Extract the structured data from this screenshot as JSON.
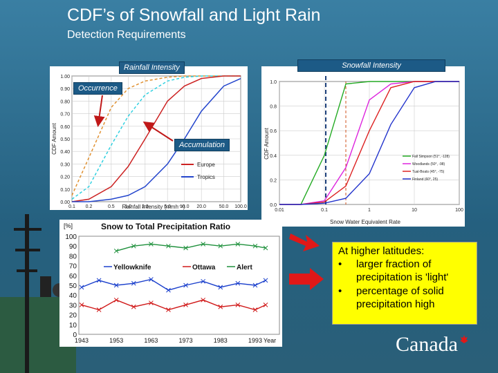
{
  "slide": {
    "title": "CDF’s of Snowfall and Light Rain",
    "subtitle": "Detection Requirements"
  },
  "rainfall_chart": {
    "tag": "Rainfall Intensity",
    "y_axis_label": "CDF Amount",
    "x_axis_label": "Rainfall Intensity (mmh⁻¹)",
    "y_ticks": [
      "1.00",
      "0.90",
      "0.80",
      "0.70",
      "0.60",
      "0.50",
      "0.40",
      "0.30",
      "0.20",
      "0.10",
      "0.00"
    ],
    "x_ticks": [
      "0.1",
      "0.2",
      "0.5",
      "1.0",
      "2.0",
      "5.0",
      "10.0",
      "20.0",
      "50.0",
      "100.0"
    ],
    "legend": [
      "Europe",
      "Tropics"
    ],
    "occurrence_label": "Occurrence",
    "accumulation_label": "Accumulation",
    "colors": {
      "europe": "#cc2222",
      "tropics": "#2244cc",
      "occ_europe": "#e09030",
      "occ_tropics": "#30d0e0"
    }
  },
  "snowfall_chart": {
    "tag": "Snowfall Intensity",
    "y_axis_label": "CDF Amount",
    "x_axis_label": "Snow Water Equivalent Rate",
    "y_ticks": [
      "1.0",
      "0.8",
      "0.6",
      "0.4",
      "0.2",
      "0.0"
    ],
    "x_ticks": [
      "0.01",
      "0.1",
      "1",
      "10",
      "100"
    ],
    "legend": [
      "Fall Simpson (51°, -128)",
      "Woodlands (50°, -98)",
      "Tual-Boats (45°, -75)",
      "Finland (60°, 25)"
    ]
  },
  "chart_data": [
    {
      "type": "line",
      "title": "Rainfall Intensity",
      "xlabel": "Rainfall Intensity (mmh-1)",
      "ylabel": "CDF Amount",
      "x": [
        0.1,
        0.2,
        0.5,
        1.0,
        2.0,
        5.0,
        10.0,
        20.0,
        50.0,
        100.0
      ],
      "ylim": [
        0,
        1
      ],
      "series": [
        {
          "name": "Europe occurrence",
          "values": [
            0.05,
            0.35,
            0.75,
            0.9,
            0.96,
            0.99,
            1.0,
            1.0,
            1.0,
            1.0
          ]
        },
        {
          "name": "Tropics occurrence",
          "values": [
            0.02,
            0.12,
            0.45,
            0.68,
            0.85,
            0.96,
            0.99,
            1.0,
            1.0,
            1.0
          ]
        },
        {
          "name": "Europe",
          "values": [
            0.0,
            0.02,
            0.12,
            0.28,
            0.5,
            0.8,
            0.92,
            0.98,
            1.0,
            1.0
          ]
        },
        {
          "name": "Tropics",
          "values": [
            0.0,
            0.0,
            0.02,
            0.05,
            0.12,
            0.3,
            0.5,
            0.72,
            0.92,
            0.98
          ]
        }
      ]
    },
    {
      "type": "line",
      "title": "Snowfall Intensity",
      "xlabel": "Snow Water Equivalent Rate",
      "ylabel": "CDF Amount",
      "x": [
        0.01,
        0.03,
        0.1,
        0.3,
        1,
        3,
        10,
        30,
        100
      ],
      "ylim": [
        0,
        1
      ],
      "series": [
        {
          "name": "Fall Simpson (51°, -128)",
          "values": [
            0.0,
            0.0,
            0.4,
            0.98,
            1.0,
            1.0,
            1.0,
            1.0,
            1.0
          ]
        },
        {
          "name": "Woodlands (50°, -98)",
          "values": [
            0.0,
            0.0,
            0.03,
            0.3,
            0.85,
            0.98,
            1.0,
            1.0,
            1.0
          ]
        },
        {
          "name": "Tual-Boats (45°, -75)",
          "values": [
            0.0,
            0.0,
            0.02,
            0.15,
            0.6,
            0.95,
            1.0,
            1.0,
            1.0
          ]
        },
        {
          "name": "Finland (60°, 25)",
          "values": [
            0.0,
            0.0,
            0.01,
            0.05,
            0.25,
            0.65,
            0.95,
            1.0,
            1.0
          ]
        }
      ]
    },
    {
      "type": "line",
      "title": "Snow to Total Precipitation Ratio",
      "ylabel": "[%]",
      "xlabel": "Year",
      "x": [
        1943,
        1948,
        1953,
        1958,
        1963,
        1968,
        1973,
        1978,
        1983,
        1988,
        1993,
        1996
      ],
      "ylim": [
        0,
        100
      ],
      "series": [
        {
          "name": "Yellowknife",
          "values": [
            48,
            55,
            50,
            52,
            56,
            45,
            50,
            54,
            48,
            52,
            50,
            55
          ]
        },
        {
          "name": "Ottawa",
          "values": [
            30,
            25,
            35,
            28,
            32,
            25,
            30,
            35,
            28,
            30,
            25,
            30
          ]
        },
        {
          "name": "Alert",
          "values": [
            null,
            null,
            85,
            90,
            92,
            90,
            88,
            92,
            90,
            92,
            90,
            88
          ]
        }
      ]
    }
  ],
  "ratio_chart": {
    "title": "Snow to Total Precipitation Ratio",
    "unit": "[%]",
    "y_ticks": [
      "100",
      "90",
      "80",
      "70",
      "60",
      "50",
      "40",
      "30",
      "20",
      "10",
      "0"
    ],
    "x_ticks": [
      "1943",
      "1953",
      "1963",
      "1973",
      "1983",
      "1993",
      "Year"
    ],
    "legend": [
      "Yellowknife",
      "Ottawa",
      "Alert"
    ],
    "colors": {
      "yellowknife": "#1a3fcc",
      "ottawa": "#d01818",
      "alert": "#1c8f3a"
    }
  },
  "info": {
    "heading": "At higher latitudes:",
    "bullet_symbol": "•",
    "item1_line1": "larger fraction of",
    "item1_line2": "precipitation is 'light'",
    "item2_line1": "percentage of solid",
    "item2_line2": "precipitation high"
  },
  "brand": {
    "wordmark": "Canada"
  }
}
